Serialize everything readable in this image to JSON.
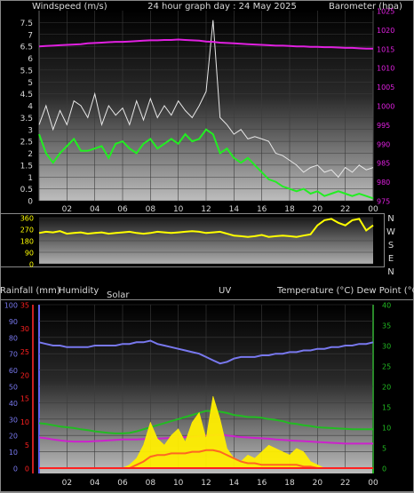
{
  "header": {
    "left": "Windspeed (m/s)",
    "center": "24 hour graph day : 24 May 2025",
    "right": "Barometer (hpa)"
  },
  "compass": [
    "N",
    "W",
    "S",
    "E",
    "N"
  ],
  "lower_header": {
    "rain": "Rainfall (mm)",
    "humidity": "Humidity",
    "solar": "Solar",
    "uv": "UV",
    "temp_dew": "Temperature (°C) Dew Point (°C)"
  },
  "colors": {
    "wind_gust": "#e8e8e8",
    "wind_avg": "#22ee22",
    "barometer": "#e020e0",
    "direction": "#ffff00",
    "humidity": "#7878ee",
    "temperature": "#22bb22",
    "dewpoint": "#cc22cc",
    "solar": "#ffee00",
    "uv": "#ff6622",
    "rain": "#ff2020"
  },
  "chart_data": [
    {
      "type": "line",
      "title": "24 hour graph day : 24 May 2025",
      "xlabel": "",
      "x_ticks": [
        "02",
        "04",
        "06",
        "08",
        "10",
        "12",
        "14",
        "16",
        "18",
        "20",
        "22",
        "00"
      ],
      "x_range": [
        0,
        24
      ],
      "y_left_label": "Windspeed (m/s)",
      "y_left_ticks": [
        "0",
        "0.5",
        "1",
        "1.5",
        "2",
        "2.5",
        "3",
        "3.5",
        "4",
        "4.5",
        "5",
        "5.5",
        "6",
        "6.5",
        "7",
        "7.5"
      ],
      "y_left_range": [
        0,
        8
      ],
      "y_right_label": "Barometer (hpa)",
      "y_right_ticks": [
        "975",
        "980",
        "985",
        "990",
        "995",
        "1000",
        "1005",
        "1010",
        "1015",
        "1020",
        "1025"
      ],
      "y_right_range": [
        975,
        1025
      ],
      "x": [
        0,
        0.5,
        1,
        1.5,
        2,
        2.5,
        3,
        3.5,
        4,
        4.5,
        5,
        5.5,
        6,
        6.5,
        7,
        7.5,
        8,
        8.5,
        9,
        9.5,
        10,
        10.5,
        11,
        11.5,
        12,
        12.5,
        13,
        13.5,
        14,
        14.5,
        15,
        15.5,
        16,
        16.5,
        17,
        17.5,
        18,
        18.5,
        19,
        19.5,
        20,
        20.5,
        21,
        21.5,
        22,
        22.5,
        23,
        23.5,
        24
      ],
      "series": [
        {
          "name": "Windspeed (m/s)",
          "axis": "left",
          "values": [
            3.2,
            4.0,
            3.0,
            3.8,
            3.2,
            4.2,
            4.0,
            3.5,
            4.5,
            3.2,
            4.0,
            3.6,
            3.9,
            3.2,
            4.2,
            3.4,
            4.3,
            3.5,
            4.0,
            3.6,
            4.2,
            3.8,
            3.5,
            4.0,
            4.6,
            7.6,
            3.5,
            3.2,
            2.8,
            3.0,
            2.6,
            2.7,
            2.6,
            2.5,
            2.0,
            1.9,
            1.7,
            1.5,
            1.2,
            1.4,
            1.5,
            1.2,
            1.3,
            1.0,
            1.4,
            1.2,
            1.5,
            1.3,
            1.4
          ]
        },
        {
          "name": "",
          "axis": "left",
          "values": [
            2.8,
            2.0,
            1.6,
            2.0,
            2.3,
            2.6,
            2.1,
            2.1,
            2.2,
            2.3,
            1.8,
            2.4,
            2.5,
            2.2,
            2.0,
            2.4,
            2.6,
            2.2,
            2.4,
            2.6,
            2.4,
            2.8,
            2.5,
            2.6,
            3.0,
            2.8,
            2.0,
            2.2,
            1.8,
            1.6,
            1.8,
            1.5,
            1.2,
            0.9,
            0.8,
            0.6,
            0.5,
            0.4,
            0.5,
            0.3,
            0.4,
            0.2,
            0.3,
            0.4,
            0.3,
            0.2,
            0.3,
            0.2,
            0.1
          ]
        },
        {
          "name": "Barometer (hpa)",
          "axis": "right",
          "values": [
            1015.6,
            1015.7,
            1015.8,
            1015.9,
            1016.0,
            1016.1,
            1016.2,
            1016.4,
            1016.5,
            1016.6,
            1016.7,
            1016.8,
            1016.8,
            1016.9,
            1017.0,
            1017.1,
            1017.2,
            1017.2,
            1017.3,
            1017.3,
            1017.4,
            1017.3,
            1017.2,
            1017.1,
            1016.9,
            1016.8,
            1016.6,
            1016.5,
            1016.4,
            1016.3,
            1016.2,
            1016.1,
            1016.0,
            1015.9,
            1015.8,
            1015.8,
            1015.7,
            1015.6,
            1015.6,
            1015.5,
            1015.5,
            1015.4,
            1015.4,
            1015.3,
            1015.2,
            1015.2,
            1015.1,
            1015.0,
            1015.0
          ]
        }
      ]
    },
    {
      "type": "line",
      "title": "",
      "y_ticks": [
        "0",
        "90",
        "180",
        "270",
        "360"
      ],
      "y_range": [
        0,
        360
      ],
      "x_range": [
        0,
        24
      ],
      "x": [
        0,
        0.5,
        1,
        1.5,
        2,
        2.5,
        3,
        3.5,
        4,
        4.5,
        5,
        5.5,
        6,
        6.5,
        7,
        7.5,
        8,
        8.5,
        9,
        9.5,
        10,
        10.5,
        11,
        11.5,
        12,
        12.5,
        13,
        13.5,
        14,
        14.5,
        15,
        15.5,
        16,
        16.5,
        17,
        17.5,
        18,
        18.5,
        19,
        19.5,
        20,
        20.5,
        21,
        21.5,
        22,
        22.5,
        23,
        23.5,
        24
      ],
      "series": [
        {
          "name": "",
          "values": [
            240,
            250,
            245,
            255,
            235,
            240,
            245,
            235,
            240,
            245,
            235,
            240,
            245,
            250,
            240,
            235,
            240,
            250,
            245,
            240,
            245,
            250,
            255,
            250,
            240,
            245,
            250,
            235,
            220,
            215,
            210,
            215,
            225,
            210,
            215,
            220,
            215,
            210,
            220,
            230,
            300,
            340,
            350,
            320,
            300,
            340,
            350,
            260,
            300
          ]
        }
      ]
    },
    {
      "type": "area",
      "title": "",
      "x_ticks": [
        "02",
        "04",
        "06",
        "08",
        "10",
        "12",
        "14",
        "16",
        "18",
        "20",
        "22",
        "00"
      ],
      "x_range": [
        0,
        24
      ],
      "axis_left_outer": {
        "label": "Rainfall (mm)",
        "ticks": [
          "0",
          "5",
          "10",
          "15",
          "20",
          "25",
          "30",
          "35"
        ],
        "range": [
          0,
          35
        ]
      },
      "axis_left_inner": {
        "label": "Humidity",
        "ticks": [
          "0",
          "10",
          "20",
          "30",
          "40",
          "50",
          "60",
          "70",
          "80",
          "90",
          "100"
        ],
        "range": [
          0,
          100
        ]
      },
      "axis_right": {
        "label": "Temperature (°C) Dew Point (°C)",
        "ticks": [
          "0",
          "5",
          "10",
          "15",
          "20",
          "25",
          "30",
          "35",
          "40"
        ],
        "range": [
          0,
          40
        ]
      },
      "x": [
        0,
        0.5,
        1,
        1.5,
        2,
        2.5,
        3,
        3.5,
        4,
        4.5,
        5,
        5.5,
        6,
        6.5,
        7,
        7.5,
        8,
        8.5,
        9,
        9.5,
        10,
        10.5,
        11,
        11.5,
        12,
        12.5,
        13,
        13.5,
        14,
        14.5,
        15,
        15.5,
        16,
        16.5,
        17,
        17.5,
        18,
        18.5,
        19,
        19.5,
        20,
        20.5,
        21,
        21.5,
        22,
        22.5,
        23,
        23.5,
        24
      ],
      "series": [
        {
          "name": "Humidity",
          "axis": "left_inner",
          "values": [
            77,
            76,
            75,
            75,
            74,
            74,
            74,
            74,
            75,
            75,
            75,
            75,
            76,
            76,
            77,
            77,
            78,
            76,
            75,
            74,
            73,
            72,
            71,
            70,
            68,
            66,
            64,
            65,
            67,
            68,
            68,
            68,
            69,
            69,
            70,
            70,
            71,
            71,
            72,
            72,
            73,
            73,
            74,
            74,
            75,
            75,
            76,
            76,
            77
          ]
        },
        {
          "name": "Temperature (°C)",
          "axis": "right",
          "values": [
            11.0,
            10.8,
            10.5,
            10.2,
            10.0,
            9.8,
            9.5,
            9.3,
            9.0,
            8.8,
            8.6,
            8.5,
            8.5,
            8.6,
            9.0,
            9.5,
            10.0,
            10.5,
            11.0,
            11.5,
            12.0,
            12.5,
            13.0,
            13.5,
            14.0,
            14.0,
            13.8,
            13.5,
            13.0,
            12.8,
            12.5,
            12.5,
            12.3,
            12.0,
            11.8,
            11.5,
            11.0,
            10.8,
            10.5,
            10.3,
            10.0,
            9.9,
            9.8,
            9.7,
            9.6,
            9.5,
            9.5,
            9.5,
            9.5
          ]
        },
        {
          "name": "Dew Point (°C)",
          "axis": "right",
          "values": [
            7.5,
            7.3,
            7.0,
            6.8,
            6.6,
            6.5,
            6.5,
            6.5,
            6.6,
            6.7,
            6.8,
            6.9,
            7.0,
            7.0,
            7.0,
            7.1,
            7.2,
            7.2,
            7.3,
            7.4,
            7.5,
            7.6,
            7.7,
            7.8,
            8.0,
            8.1,
            8.2,
            8.0,
            7.8,
            7.6,
            7.5,
            7.4,
            7.3,
            7.2,
            7.0,
            6.9,
            6.8,
            6.7,
            6.6,
            6.5,
            6.4,
            6.3,
            6.2,
            6.1,
            6.0,
            6.0,
            6.0,
            6.0,
            6.0
          ]
        },
        {
          "name": "Solar",
          "axis": "left_inner",
          "values": [
            0,
            0,
            0,
            0,
            0,
            0,
            0,
            0,
            0,
            0,
            0,
            0,
            0,
            2,
            6,
            14,
            28,
            18,
            14,
            20,
            24,
            16,
            28,
            34,
            18,
            44,
            30,
            12,
            6,
            4,
            8,
            6,
            10,
            14,
            12,
            10,
            8,
            12,
            10,
            4,
            2,
            0,
            0,
            0,
            0,
            0,
            0,
            0,
            0
          ]
        },
        {
          "name": "UV",
          "axis": "left_inner",
          "values": [
            0,
            0,
            0,
            0,
            0,
            0,
            0,
            0,
            0,
            0,
            0,
            0,
            0,
            0,
            2,
            4,
            7,
            8,
            8,
            9,
            9,
            9,
            10,
            10,
            11,
            11,
            10,
            8,
            6,
            4,
            3,
            3,
            2,
            2,
            2,
            2,
            2,
            2,
            1,
            1,
            0,
            0,
            0,
            0,
            0,
            0,
            0,
            0,
            0
          ]
        },
        {
          "name": "Rainfall (mm)",
          "axis": "left_outer",
          "values": [
            0,
            0,
            0,
            0,
            0,
            0,
            0,
            0,
            0,
            0,
            0,
            0,
            0,
            0,
            0,
            0,
            0,
            0,
            0,
            0,
            0,
            0,
            0,
            0,
            0,
            0,
            0,
            0,
            0,
            0,
            0,
            0,
            0,
            0,
            0,
            0,
            0,
            0,
            0,
            0,
            0,
            0,
            0,
            0,
            0,
            0,
            0,
            0,
            0
          ]
        }
      ]
    }
  ]
}
